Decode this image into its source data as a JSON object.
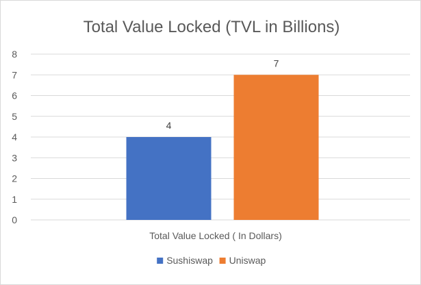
{
  "chart_data": {
    "type": "bar",
    "title": "Total Value Locked (TVL in Billions)",
    "categories": [
      "Total Value Locked ( In Dollars)"
    ],
    "series": [
      {
        "name": "Sushiswap",
        "values": [
          4
        ],
        "color": "#4472c4"
      },
      {
        "name": "Uniswap",
        "values": [
          7
        ],
        "color": "#ed7d31"
      }
    ],
    "ylim": [
      0,
      8
    ],
    "yticks": [
      0,
      1,
      2,
      3,
      4,
      5,
      6,
      7,
      8
    ],
    "grid": true,
    "legend": "bottom",
    "data_labels": true
  }
}
